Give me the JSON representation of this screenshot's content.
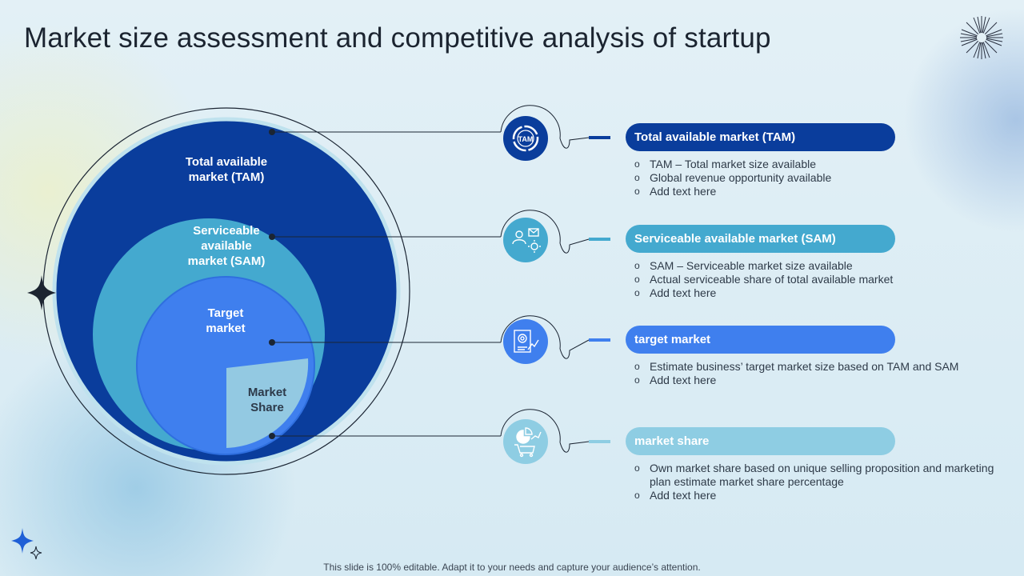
{
  "title": "Market size assessment and competitive analysis of startup",
  "diagram": {
    "tam_label": "Total available market (TAM)",
    "sam_label": "Serviceable available market (SAM)",
    "target_label": "Target market",
    "share_label": "Market Share",
    "tam_icon_text": "TAM"
  },
  "sections": [
    {
      "heading": "Total available market (TAM)",
      "color": "#0a3d9c",
      "bullets": [
        "TAM – Total market size available",
        "Global revenue opportunity available",
        "Add text here"
      ]
    },
    {
      "heading": "Serviceable available market (SAM)",
      "color": "#44a9cf",
      "bullets": [
        "SAM – Serviceable market size available",
        "Actual serviceable share of total available market",
        "Add text here"
      ]
    },
    {
      "heading": "target market",
      "color": "#3f7fee",
      "bullets": [
        "Estimate business’ target market size based on TAM and SAM",
        "Add text here"
      ]
    },
    {
      "heading": "market share",
      "color": "#8ecde3",
      "bullets": [
        "Own market share based on unique selling proposition and marketing plan estimate market share percentage",
        "Add text here"
      ]
    }
  ],
  "footer": "This slide is 100% editable. Adapt it to your needs and capture your audience’s attention.",
  "colors": {
    "tam": "#0a3d9c",
    "sam": "#44a9cf",
    "target": "#3f7fee",
    "share": "#8ecde3",
    "background": "#dcecf4"
  }
}
